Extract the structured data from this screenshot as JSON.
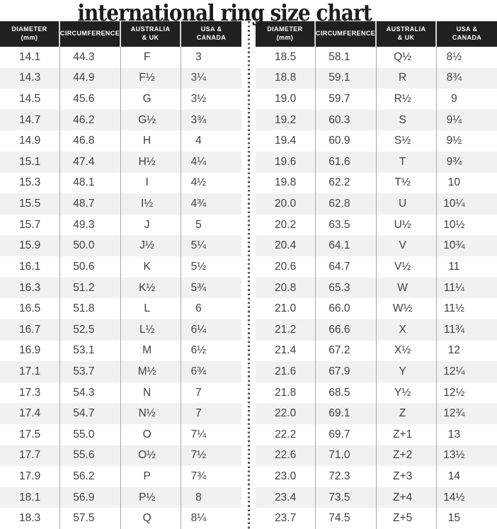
{
  "chart_data": {
    "type": "table",
    "title": "international ring size chart",
    "columns": [
      [
        "DIAMETER",
        "(mm)"
      ],
      [
        "CIRCUMFERENCE"
      ],
      [
        "AUSTRALIA",
        "& UK"
      ],
      [
        "USA &",
        "CANADA"
      ]
    ],
    "tables": [
      {
        "name": "left",
        "rows": [
          [
            "14.1",
            "44.3",
            "F",
            "3"
          ],
          [
            "14.3",
            "44.9",
            "F½",
            "3¼"
          ],
          [
            "14.5",
            "45.6",
            "G",
            "3½"
          ],
          [
            "14.7",
            "46.2",
            "G½",
            "3¾"
          ],
          [
            "14.9",
            "46.8",
            "H",
            "4"
          ],
          [
            "15.1",
            "47.4",
            "H½",
            "4¼"
          ],
          [
            "15.3",
            "48.1",
            "I",
            "4½"
          ],
          [
            "15.5",
            "48.7",
            "I½",
            "4¾"
          ],
          [
            "15.7",
            "49.3",
            "J",
            "5"
          ],
          [
            "15.9",
            "50.0",
            "J½",
            "5¼"
          ],
          [
            "16.1",
            "50.6",
            "K",
            "5½"
          ],
          [
            "16.3",
            "51.2",
            "K½",
            "5¾"
          ],
          [
            "16.5",
            "51.8",
            "L",
            "6"
          ],
          [
            "16.7",
            "52.5",
            "L½",
            "6¼"
          ],
          [
            "16.9",
            "53.1",
            "M",
            "6½"
          ],
          [
            "17.1",
            "53.7",
            "M½",
            "6¾"
          ],
          [
            "17.3",
            "54.3",
            "N",
            "7"
          ],
          [
            "17.4",
            "54.7",
            "N½",
            "7"
          ],
          [
            "17.5",
            "55.0",
            "O",
            "7¼"
          ],
          [
            "17.7",
            "55.6",
            "O½",
            "7½"
          ],
          [
            "17.9",
            "56.2",
            "P",
            "7¾"
          ],
          [
            "18.1",
            "56.9",
            "P½",
            "8"
          ],
          [
            "18.3",
            "57.5",
            "Q",
            "8¼"
          ]
        ]
      },
      {
        "name": "right",
        "rows": [
          [
            "18.5",
            "58.1",
            "Q½",
            "8½"
          ],
          [
            "18.8",
            "59.1",
            "R",
            "8¾"
          ],
          [
            "19.0",
            "59.7",
            "R½",
            "9"
          ],
          [
            "19.2",
            "60.3",
            "S",
            "9¼"
          ],
          [
            "19.4",
            "60.9",
            "S½",
            "9½"
          ],
          [
            "19.6",
            "61.6",
            "T",
            "9¾"
          ],
          [
            "19.8",
            "62.2",
            "T½",
            "10"
          ],
          [
            "20.0",
            "62.8",
            "U",
            "10¼"
          ],
          [
            "20.2",
            "63.5",
            "U½",
            "10½"
          ],
          [
            "20.4",
            "64.1",
            "V",
            "10¾"
          ],
          [
            "20.6",
            "64.7",
            "V½",
            "11"
          ],
          [
            "20.8",
            "65.3",
            "W",
            "11¼"
          ],
          [
            "21.0",
            "66.0",
            "W½",
            "11½"
          ],
          [
            "21.2",
            "66.6",
            "X",
            "11¾"
          ],
          [
            "21.4",
            "67.2",
            "X½",
            "12"
          ],
          [
            "21.6",
            "67.9",
            "Y",
            "12¼"
          ],
          [
            "21.8",
            "68.5",
            "Y½",
            "12½"
          ],
          [
            "22.0",
            "69.1",
            "Z",
            "12¾"
          ],
          [
            "22.2",
            "69.7",
            "Z+1",
            "13"
          ],
          [
            "22.6",
            "71.0",
            "Z+2",
            "13½"
          ],
          [
            "23.0",
            "72.3",
            "Z+3",
            "14"
          ],
          [
            "23.4",
            "73.5",
            "Z+4",
            "14½"
          ],
          [
            "23.7",
            "74.5",
            "Z+5",
            "15"
          ]
        ]
      }
    ],
    "layout_hints": {
      "grid": "striped rows, thin column separators",
      "divider": "vertical dotted line between the two tables"
    }
  },
  "colors": {
    "header_bg": "#231f20",
    "header_text": "#ffffff",
    "row_stripe": "#f1f1ef",
    "body_text": "#414042",
    "column_line": "#a8a8a8",
    "header_line": "#d6d6d6",
    "divider_dot": "#565656",
    "title_text": "#1c1c1c"
  }
}
